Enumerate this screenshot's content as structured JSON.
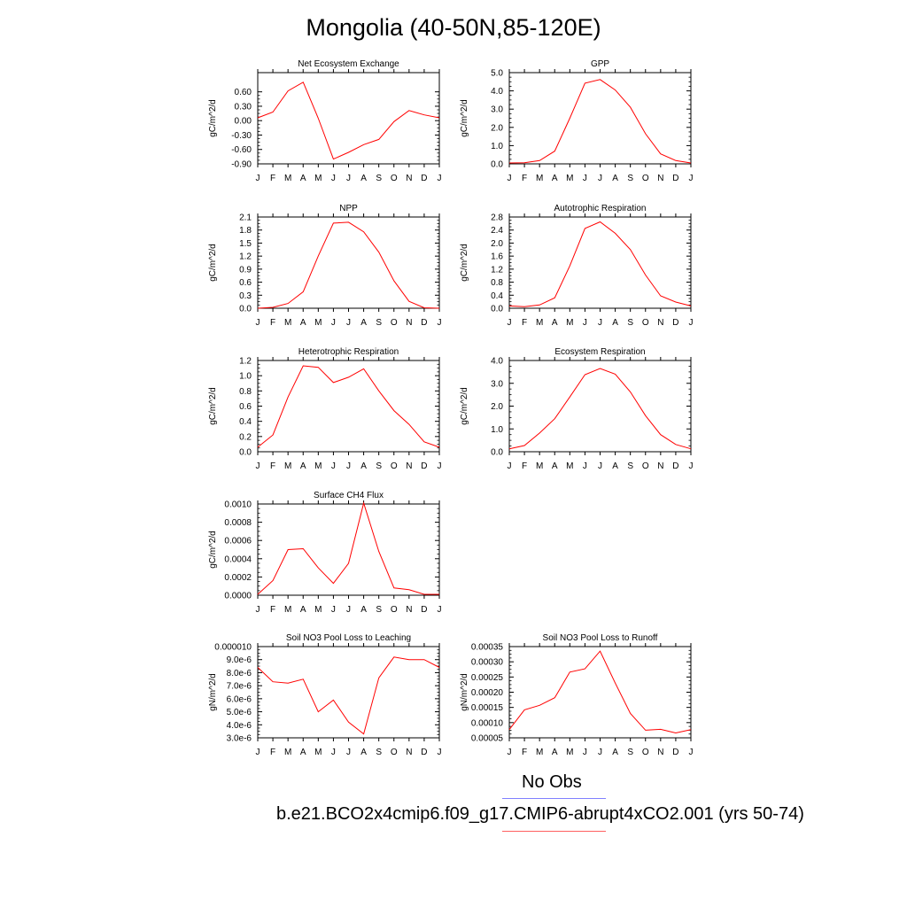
{
  "title": "Mongolia (40-50N,85-120E)",
  "months": [
    "J",
    "F",
    "M",
    "A",
    "M",
    "J",
    "J",
    "A",
    "S",
    "O",
    "N",
    "D",
    "J"
  ],
  "line_color": "#ff0000",
  "legend": {
    "obs_label": "No Obs",
    "obs_color": "#8080ff",
    "case_label": "b.e21.BCO2x4cmip6.f09_g17.CMIP6-abrupt4xCO2.001 (yrs 50-74)",
    "case_color": "#ff6060"
  },
  "chart_data": [
    {
      "type": "line",
      "title": "Net Ecosystem Exchange",
      "ylabel": "gC/m^2/d",
      "ylim": [
        -0.9,
        1.0
      ],
      "yticks": [
        -0.9,
        -0.6,
        -0.3,
        0.0,
        0.3,
        0.6
      ],
      "yticklabels": [
        "-0.90",
        "-0.60",
        "-0.30",
        "0.00",
        "0.30",
        "0.60"
      ],
      "x": [
        "J",
        "F",
        "M",
        "A",
        "M",
        "J",
        "J",
        "A",
        "S",
        "O",
        "N",
        "D",
        "J"
      ],
      "values": [
        0.06,
        0.18,
        0.62,
        0.8,
        0.05,
        -0.8,
        -0.66,
        -0.5,
        -0.39,
        -0.02,
        0.21,
        0.12,
        0.06
      ]
    },
    {
      "type": "line",
      "title": "GPP",
      "ylabel": "gC/m^2/d",
      "ylim": [
        0.0,
        5.0
      ],
      "yticks": [
        0.0,
        1.0,
        2.0,
        3.0,
        4.0,
        5.0
      ],
      "yticklabels": [
        "0.0",
        "1.0",
        "2.0",
        "3.0",
        "4.0",
        "5.0"
      ],
      "x": [
        "J",
        "F",
        "M",
        "A",
        "M",
        "J",
        "J",
        "A",
        "S",
        "O",
        "N",
        "D",
        "J"
      ],
      "values": [
        0.05,
        0.06,
        0.18,
        0.7,
        2.5,
        4.42,
        4.62,
        4.05,
        3.1,
        1.65,
        0.55,
        0.18,
        0.05
      ]
    },
    {
      "type": "line",
      "title": "NPP",
      "ylabel": "gC/m^2/d",
      "ylim": [
        0.0,
        2.1
      ],
      "yticks": [
        0.0,
        0.3,
        0.6,
        0.9,
        1.2,
        1.5,
        1.8,
        2.1
      ],
      "yticklabels": [
        "0.0",
        "0.3",
        "0.6",
        "0.9",
        "1.2",
        "1.5",
        "1.8",
        "2.1"
      ],
      "x": [
        "J",
        "F",
        "M",
        "A",
        "M",
        "J",
        "J",
        "A",
        "S",
        "O",
        "N",
        "D",
        "J"
      ],
      "values": [
        0.0,
        0.02,
        0.11,
        0.38,
        1.2,
        1.96,
        1.98,
        1.76,
        1.29,
        0.63,
        0.16,
        0.01,
        0.0
      ]
    },
    {
      "type": "line",
      "title": "Autotrophic Respiration",
      "ylabel": "gC/m^2/d",
      "ylim": [
        0.0,
        2.8
      ],
      "yticks": [
        0.0,
        0.4,
        0.8,
        1.2,
        1.6,
        2.0,
        2.4,
        2.8
      ],
      "yticklabels": [
        "0.0",
        "0.4",
        "0.8",
        "1.2",
        "1.6",
        "2.0",
        "2.4",
        "2.8"
      ],
      "x": [
        "J",
        "F",
        "M",
        "A",
        "M",
        "J",
        "J",
        "A",
        "S",
        "O",
        "N",
        "D",
        "J"
      ],
      "values": [
        0.07,
        0.05,
        0.1,
        0.32,
        1.3,
        2.45,
        2.65,
        2.3,
        1.8,
        1.02,
        0.38,
        0.19,
        0.07
      ]
    },
    {
      "type": "line",
      "title": "Heterotrophic Respiration",
      "ylabel": "gC/m^2/d",
      "ylim": [
        0.0,
        1.2
      ],
      "yticks": [
        0.0,
        0.2,
        0.4,
        0.6,
        0.8,
        1.0,
        1.2
      ],
      "yticklabels": [
        "0.0",
        "0.2",
        "0.4",
        "0.6",
        "0.8",
        "1.0",
        "1.2"
      ],
      "x": [
        "J",
        "F",
        "M",
        "A",
        "M",
        "J",
        "J",
        "A",
        "S",
        "O",
        "N",
        "D",
        "J"
      ],
      "values": [
        0.06,
        0.22,
        0.72,
        1.13,
        1.11,
        0.91,
        0.98,
        1.09,
        0.8,
        0.54,
        0.36,
        0.13,
        0.06
      ]
    },
    {
      "type": "line",
      "title": "Ecosystem Respiration",
      "ylabel": "gC/m^2/d",
      "ylim": [
        0.0,
        4.0
      ],
      "yticks": [
        0.0,
        1.0,
        2.0,
        3.0,
        4.0
      ],
      "yticklabels": [
        "0.0",
        "1.0",
        "2.0",
        "3.0",
        "4.0"
      ],
      "x": [
        "J",
        "F",
        "M",
        "A",
        "M",
        "J",
        "J",
        "A",
        "S",
        "O",
        "N",
        "D",
        "J"
      ],
      "values": [
        0.13,
        0.27,
        0.82,
        1.45,
        2.4,
        3.38,
        3.65,
        3.4,
        2.62,
        1.58,
        0.75,
        0.32,
        0.13
      ]
    },
    {
      "type": "line",
      "title": "Surface CH4 Flux",
      "ylabel": "gC/m^2/d",
      "ylim": [
        0.0,
        0.001
      ],
      "yticks": [
        0.0,
        0.0002,
        0.0004,
        0.0006,
        0.0008,
        0.001
      ],
      "yticklabels": [
        "0.0000",
        "0.0002",
        "0.0004",
        "0.0006",
        "0.0008",
        "0.0010"
      ],
      "x": [
        "J",
        "F",
        "M",
        "A",
        "M",
        "J",
        "J",
        "A",
        "S",
        "O",
        "N",
        "D",
        "J"
      ],
      "values": [
        1e-05,
        0.00016,
        0.0005,
        0.00051,
        0.0003,
        0.00013,
        0.00035,
        0.00101,
        0.00048,
        8e-05,
        6e-05,
        1e-05,
        1e-05
      ]
    },
    {
      "type": "line",
      "title": "Soil NO3 Pool Loss to Leaching",
      "ylabel": "gN/m^2/d",
      "ylim": [
        3e-06,
        1e-05
      ],
      "yticks": [
        3e-06,
        4e-06,
        5e-06,
        6e-06,
        7e-06,
        8e-06,
        9e-06,
        1e-05
      ],
      "yticklabels": [
        "3.0e-6",
        "4.0e-6",
        "5.0e-6",
        "6.0e-6",
        "7.0e-6",
        "8.0e-6",
        "9.0e-6",
        "0.000010"
      ],
      "x": [
        "J",
        "F",
        "M",
        "A",
        "M",
        "J",
        "J",
        "A",
        "S",
        "O",
        "N",
        "D",
        "J"
      ],
      "values": [
        8.4e-06,
        7.3e-06,
        7.2e-06,
        7.5e-06,
        5e-06,
        5.9e-06,
        4.2e-06,
        3.3e-06,
        7.6e-06,
        9.2e-06,
        9e-06,
        9e-06,
        8.4e-06
      ]
    },
    {
      "type": "line",
      "title": "Soil NO3 Pool Loss to Runoff",
      "ylabel": "gN/m^2/d",
      "ylim": [
        5e-05,
        0.00035
      ],
      "yticks": [
        5e-05,
        0.0001,
        0.00015,
        0.0002,
        0.00025,
        0.0003,
        0.00035
      ],
      "yticklabels": [
        "0.00005",
        "0.00010",
        "0.00015",
        "0.00020",
        "0.00025",
        "0.00030",
        "0.00035"
      ],
      "x": [
        "J",
        "F",
        "M",
        "A",
        "M",
        "J",
        "J",
        "A",
        "S",
        "O",
        "N",
        "D",
        "J"
      ],
      "values": [
        7.7e-05,
        0.000142,
        0.000157,
        0.000182,
        0.000266,
        0.000277,
        0.000335,
        0.00023,
        0.00013,
        7.5e-05,
        7.8e-05,
        6.6e-05,
        7.7e-05
      ]
    }
  ]
}
